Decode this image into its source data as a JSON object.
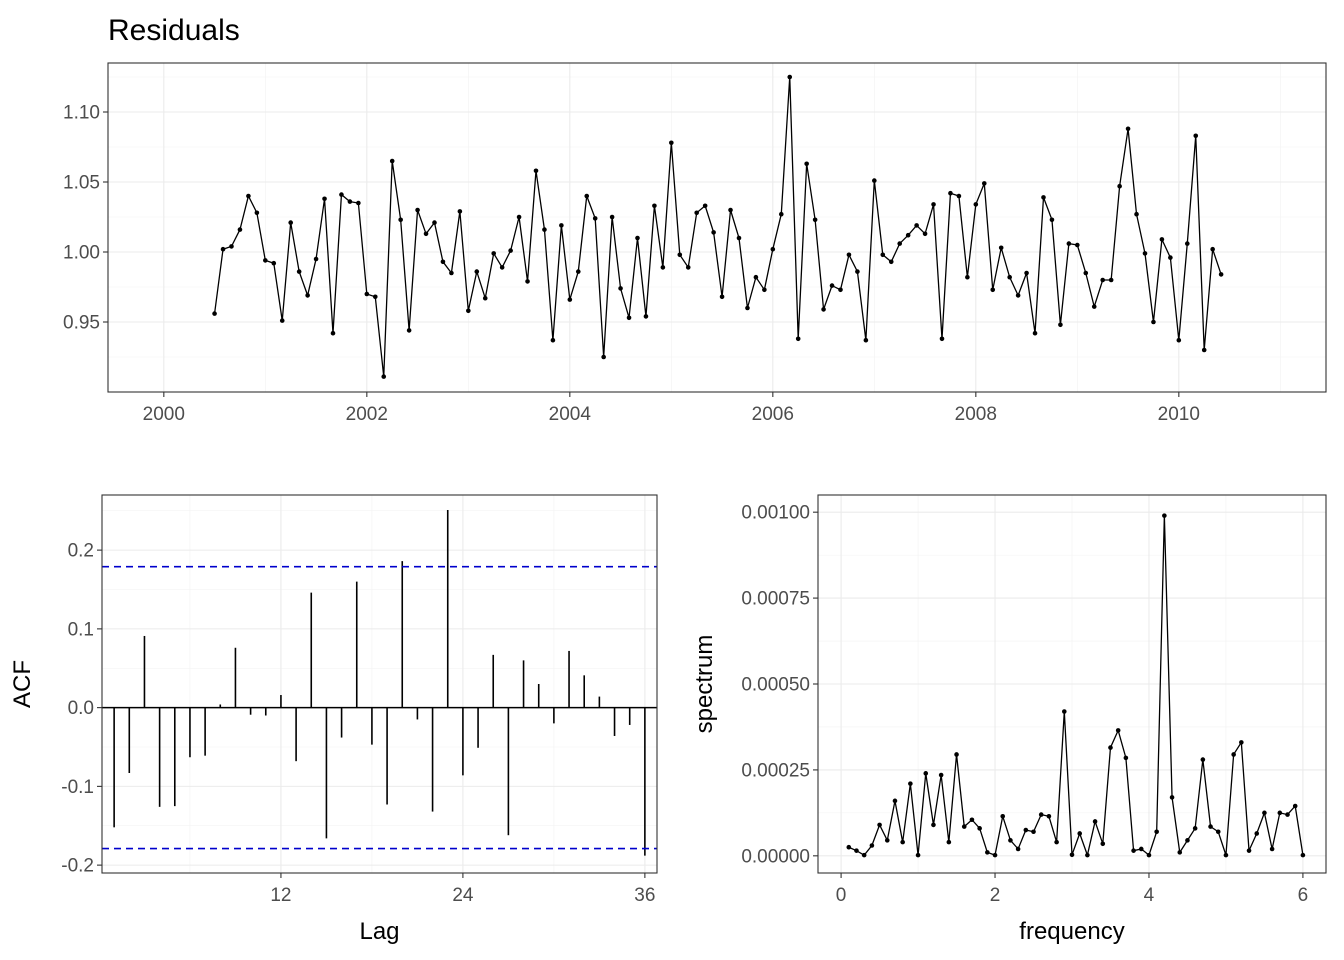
{
  "chart_data": [
    {
      "type": "line",
      "title": "Residuals",
      "xlabel": "",
      "ylabel": "",
      "xlim": [
        1999.45,
        2011.45
      ],
      "ylim": [
        0.9,
        1.135
      ],
      "x_ticks": [
        2000,
        2002,
        2004,
        2006,
        2008,
        2010
      ],
      "y_ticks": [
        0.95,
        1.0,
        1.05,
        1.1
      ],
      "y_tick_labels": [
        "0.95",
        "1.00",
        "1.05",
        "1.10"
      ],
      "grid": true,
      "x_start": 2000.5,
      "x_step": 0.08333333,
      "values": [
        0.956,
        1.002,
        1.004,
        1.016,
        1.04,
        1.028,
        0.994,
        0.992,
        0.951,
        1.021,
        0.986,
        0.969,
        0.995,
        1.038,
        0.942,
        1.041,
        1.036,
        1.035,
        0.97,
        0.968,
        0.911,
        1.065,
        1.023,
        0.944,
        1.03,
        1.013,
        1.021,
        0.993,
        0.985,
        1.029,
        0.958,
        0.986,
        0.967,
        0.999,
        0.989,
        1.001,
        1.025,
        0.979,
        1.058,
        1.016,
        0.937,
        1.019,
        0.966,
        0.986,
        1.04,
        1.024,
        0.925,
        1.025,
        0.974,
        0.953,
        1.01,
        0.954,
        1.033,
        0.989,
        1.078,
        0.998,
        0.989,
        1.028,
        1.033,
        1.014,
        0.968,
        1.03,
        1.01,
        0.96,
        0.982,
        0.973,
        1.002,
        1.027,
        1.125,
        0.938,
        1.063,
        1.023,
        0.959,
        0.976,
        0.973,
        0.998,
        0.986,
        0.937,
        1.051,
        0.998,
        0.993,
        1.006,
        1.012,
        1.019,
        1.013,
        1.034,
        0.938,
        1.042,
        1.04,
        0.982,
        1.034,
        1.049,
        0.973,
        1.003,
        0.982,
        0.969,
        0.985,
        0.942,
        1.039,
        1.023,
        0.948,
        1.006,
        1.005,
        0.985,
        0.961,
        0.98,
        0.98,
        1.047,
        1.088,
        1.027,
        0.999,
        0.95,
        1.009,
        0.996,
        0.937,
        1.006,
        1.083,
        0.93,
        1.002,
        0.984
      ]
    },
    {
      "type": "bar",
      "xlabel": "Lag",
      "ylabel": "ACF",
      "xlim": [
        0.2,
        36.8
      ],
      "ylim": [
        -0.21,
        0.27
      ],
      "x_ticks": [
        12,
        24,
        36
      ],
      "y_ticks": [
        -0.2,
        -0.1,
        0.0,
        0.1,
        0.2
      ],
      "y_tick_labels": [
        "-0.2",
        "-0.1",
        "0.0",
        "0.1",
        "0.2"
      ],
      "grid": true,
      "ci": 0.179,
      "lags": [
        1,
        2,
        3,
        4,
        5,
        6,
        7,
        8,
        9,
        10,
        11,
        12,
        13,
        14,
        15,
        16,
        17,
        18,
        19,
        20,
        21,
        22,
        23,
        24,
        25,
        26,
        27,
        28,
        29,
        30,
        31,
        32,
        33,
        34,
        35,
        36
      ],
      "values": [
        -0.152,
        -0.083,
        0.091,
        -0.126,
        -0.125,
        -0.063,
        -0.061,
        0.004,
        0.076,
        -0.009,
        -0.01,
        0.016,
        -0.068,
        0.146,
        -0.166,
        -0.038,
        0.16,
        -0.047,
        -0.123,
        0.186,
        -0.015,
        -0.132,
        0.251,
        -0.086,
        -0.051,
        0.067,
        -0.162,
        0.06,
        0.03,
        -0.02,
        0.072,
        0.041,
        0.014,
        -0.036,
        -0.022,
        -0.188
      ]
    },
    {
      "type": "line",
      "xlabel": "frequency",
      "ylabel": "spectrum",
      "xlim": [
        -0.3,
        6.3
      ],
      "ylim": [
        -5e-05,
        0.00105
      ],
      "x_ticks": [
        0,
        2,
        4,
        6
      ],
      "y_ticks": [
        0.0,
        0.00025,
        0.0005,
        0.00075,
        0.001
      ],
      "y_tick_labels": [
        "0.00000",
        "0.00025",
        "0.00050",
        "0.00075",
        "0.00100"
      ],
      "grid": true,
      "x": [
        0.1,
        0.2,
        0.3,
        0.4,
        0.5,
        0.6,
        0.7,
        0.8,
        0.9,
        1.0,
        1.1,
        1.2,
        1.3,
        1.4,
        1.5,
        1.6,
        1.7,
        1.8,
        1.9,
        2.0,
        2.1,
        2.2,
        2.3,
        2.4,
        2.5,
        2.6,
        2.7,
        2.8,
        2.9,
        3.0,
        3.1,
        3.2,
        3.3,
        3.4,
        3.5,
        3.6,
        3.7,
        3.8,
        3.9,
        4.0,
        4.1,
        4.2,
        4.3,
        4.4,
        4.5,
        4.6,
        4.7,
        4.8,
        4.9,
        5.0,
        5.1,
        5.2,
        5.3,
        5.4,
        5.5,
        5.6,
        5.7,
        5.8,
        5.9,
        6.0
      ],
      "values": [
        2.5e-05,
        1.5e-05,
        2e-06,
        3e-05,
        9e-05,
        4.5e-05,
        0.00016,
        4e-05,
        0.00021,
        2e-06,
        0.00024,
        9e-05,
        0.000235,
        4e-05,
        0.000295,
        8.5e-05,
        0.000105,
        8e-05,
        1e-05,
        2e-06,
        0.000115,
        4.5e-05,
        2e-05,
        7.5e-05,
        7e-05,
        0.00012,
        0.000115,
        4e-05,
        0.00042,
        3e-06,
        6.5e-05,
        2e-06,
        0.0001,
        3.5e-05,
        0.000315,
        0.000365,
        0.000285,
        1.5e-05,
        2e-05,
        2e-06,
        7e-05,
        0.00099,
        0.00017,
        1e-05,
        4.5e-05,
        8e-05,
        0.00028,
        8.5e-05,
        7e-05,
        2e-06,
        0.000295,
        0.00033,
        1.5e-05,
        6.5e-05,
        0.000125,
        2e-05,
        0.000125,
        0.00012,
        0.000145,
        2e-06
      ]
    }
  ]
}
